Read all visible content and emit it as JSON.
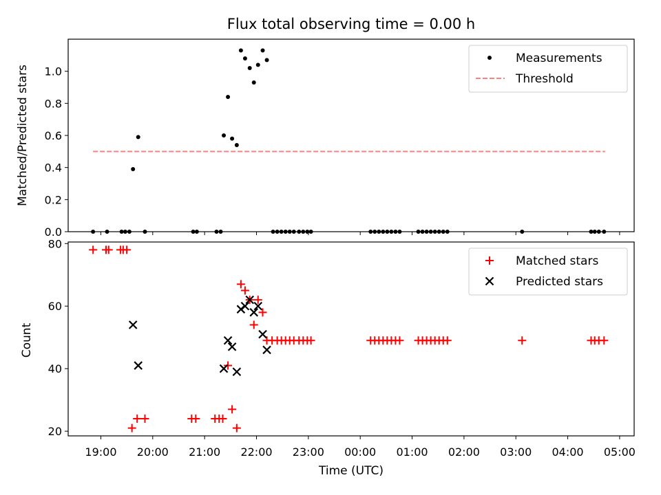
{
  "chart_data": [
    {
      "type": "scatter",
      "title": "Flux total observing time = 0.00 h",
      "xlabel": "",
      "ylabel": "Matched/Predicted stars",
      "xlim": [
        18.37,
        5.28
      ],
      "ylim": [
        0,
        1.2
      ],
      "yticks": [
        "0.0",
        "0.2",
        "0.4",
        "0.6",
        "0.8",
        "1.0"
      ],
      "legend_position": "top-right",
      "series": [
        {
          "name": "Measurements",
          "marker": "dot",
          "color": "#000000",
          "x": [
            18.85,
            19.12,
            19.4,
            19.47,
            19.55,
            19.62,
            19.72,
            19.85,
            20.78,
            20.85,
            21.23,
            21.31,
            21.37,
            21.45,
            21.53,
            21.62,
            21.7,
            21.78,
            21.87,
            21.95,
            22.03,
            22.12,
            22.2,
            22.32,
            22.4,
            22.48,
            22.56,
            22.64,
            22.72,
            22.82,
            22.9,
            22.98,
            23.05,
            0.2,
            0.28,
            0.36,
            0.44,
            0.52,
            0.6,
            0.68,
            0.76,
            1.12,
            1.2,
            1.28,
            1.36,
            1.44,
            1.52,
            1.6,
            1.68,
            3.12,
            4.45,
            4.52,
            4.6,
            4.7
          ],
          "y": [
            0,
            0,
            0,
            0,
            0,
            0.39,
            0.59,
            0,
            0,
            0,
            0,
            0,
            0.6,
            0.84,
            0.58,
            0.54,
            1.13,
            1.08,
            1.02,
            0.93,
            1.04,
            1.13,
            1.07,
            0,
            0,
            0,
            0,
            0,
            0,
            0,
            0,
            0,
            0,
            0,
            0,
            0,
            0,
            0,
            0,
            0,
            0,
            0,
            0,
            0,
            0,
            0,
            0,
            0,
            0,
            0,
            0,
            0,
            0,
            0
          ]
        },
        {
          "name": "Threshold",
          "marker": "dashed-line",
          "color": "#ff7f7f",
          "x": [
            18.85,
            4.72
          ],
          "y": [
            0.5,
            0.5
          ]
        }
      ]
    },
    {
      "type": "scatter",
      "title": "",
      "xlabel": "Time (UTC)",
      "ylabel": "Count",
      "xlim": [
        18.37,
        5.28
      ],
      "ylim": [
        18.5,
        80.5
      ],
      "yticks": [
        "20",
        "40",
        "60",
        "80"
      ],
      "xticks": [
        "19:00",
        "20:00",
        "21:00",
        "22:00",
        "23:00",
        "00:00",
        "01:00",
        "02:00",
        "03:00",
        "04:00",
        "05:00"
      ],
      "legend_position": "top-right",
      "series": [
        {
          "name": "Matched stars",
          "marker": "plus",
          "color": "#ff0000",
          "x": [
            18.85,
            19.1,
            19.15,
            19.38,
            19.43,
            19.5,
            19.6,
            19.7,
            19.85,
            20.75,
            20.83,
            21.2,
            21.28,
            21.35,
            21.45,
            21.53,
            21.62,
            21.7,
            21.78,
            21.87,
            21.95,
            22.03,
            22.12,
            22.2,
            22.3,
            22.4,
            22.48,
            22.56,
            22.64,
            22.72,
            22.82,
            22.9,
            22.98,
            23.05,
            0.2,
            0.28,
            0.36,
            0.44,
            0.52,
            0.6,
            0.68,
            0.76,
            1.12,
            1.2,
            1.28,
            1.36,
            1.44,
            1.52,
            1.6,
            1.68,
            3.12,
            4.45,
            4.52,
            4.6,
            4.7
          ],
          "y": [
            78,
            78,
            78,
            78,
            78,
            78,
            21,
            24,
            24,
            24,
            24,
            24,
            24,
            24,
            41,
            27,
            21,
            67,
            65,
            62,
            54,
            62,
            58,
            49,
            49,
            49,
            49,
            49,
            49,
            49,
            49,
            49,
            49,
            49,
            49,
            49,
            49,
            49,
            49,
            49,
            49,
            49,
            49,
            49,
            49,
            49,
            49,
            49,
            49,
            49,
            49,
            49,
            49,
            49,
            49
          ]
        },
        {
          "name": "Predicted stars",
          "marker": "x",
          "color": "#000000",
          "x": [
            19.62,
            19.72,
            21.37,
            21.45,
            21.53,
            21.62,
            21.7,
            21.78,
            21.87,
            21.95,
            22.03,
            22.12,
            22.2
          ],
          "y": [
            54,
            41,
            40,
            49,
            47,
            39,
            59,
            60,
            62,
            58,
            60,
            51,
            46
          ]
        }
      ]
    }
  ]
}
